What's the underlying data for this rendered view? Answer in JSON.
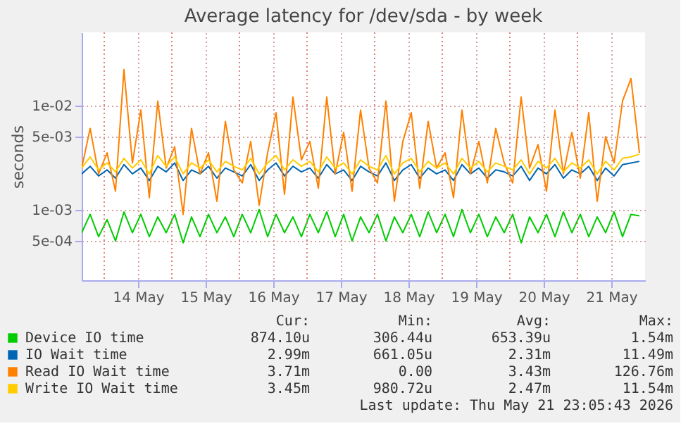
{
  "chart_data": {
    "type": "line",
    "title": "Average latency for /dev/sda - by week",
    "ylabel": "seconds",
    "x": [
      "2026-05-13T16:00",
      "2026-05-13T19:00",
      "2026-05-13T22:00",
      "2026-05-14T01:00",
      "2026-05-14T04:00",
      "2026-05-14T07:00",
      "2026-05-14T10:00",
      "2026-05-14T13:00",
      "2026-05-14T16:00",
      "2026-05-14T19:00",
      "2026-05-14T22:00",
      "2026-05-15T01:00",
      "2026-05-15T04:00",
      "2026-05-15T07:00",
      "2026-05-15T10:00",
      "2026-05-15T13:00",
      "2026-05-15T16:00",
      "2026-05-15T19:00",
      "2026-05-15T22:00",
      "2026-05-16T01:00",
      "2026-05-16T04:00",
      "2026-05-16T07:00",
      "2026-05-16T10:00",
      "2026-05-16T13:00",
      "2026-05-16T16:00",
      "2026-05-16T19:00",
      "2026-05-16T22:00",
      "2026-05-17T01:00",
      "2026-05-17T04:00",
      "2026-05-17T07:00",
      "2026-05-17T10:00",
      "2026-05-17T13:00",
      "2026-05-17T16:00",
      "2026-05-17T19:00",
      "2026-05-17T22:00",
      "2026-05-18T01:00",
      "2026-05-18T04:00",
      "2026-05-18T07:00",
      "2026-05-18T10:00",
      "2026-05-18T13:00",
      "2026-05-18T16:00",
      "2026-05-18T19:00",
      "2026-05-18T22:00",
      "2026-05-19T01:00",
      "2026-05-19T04:00",
      "2026-05-19T07:00",
      "2026-05-19T10:00",
      "2026-05-19T13:00",
      "2026-05-19T16:00",
      "2026-05-19T19:00",
      "2026-05-19T22:00",
      "2026-05-20T01:00",
      "2026-05-20T04:00",
      "2026-05-20T07:00",
      "2026-05-20T10:00",
      "2026-05-20T13:00",
      "2026-05-20T16:00",
      "2026-05-20T19:00",
      "2026-05-20T22:00",
      "2026-05-21T01:00",
      "2026-05-21T04:00",
      "2026-05-21T07:00",
      "2026-05-21T10:00",
      "2026-05-21T13:00",
      "2026-05-21T16:00",
      "2026-05-21T19:00",
      "2026-05-21T22:00"
    ],
    "series": [
      {
        "name": "Device IO time",
        "color": "#00cc00",
        "values": [
          0.0006,
          0.0009,
          0.00055,
          0.0008,
          0.0005,
          0.00095,
          0.0006,
          0.0009,
          0.00055,
          0.00085,
          0.0006,
          0.0009,
          0.00048,
          0.00085,
          0.00055,
          0.0009,
          0.0006,
          0.00085,
          0.00055,
          0.0009,
          0.0006,
          0.001,
          0.00055,
          0.0009,
          0.0006,
          0.00085,
          0.00055,
          0.0009,
          0.0006,
          0.00095,
          0.00055,
          0.0009,
          0.0005,
          0.00085,
          0.0006,
          0.0009,
          0.0005,
          0.00085,
          0.0006,
          0.0009,
          0.00055,
          0.00095,
          0.0006,
          0.0009,
          0.00055,
          0.001,
          0.0006,
          0.0009,
          0.00055,
          0.00085,
          0.0006,
          0.0009,
          0.00048,
          0.00085,
          0.0006,
          0.0009,
          0.00055,
          0.00095,
          0.0006,
          0.0009,
          0.00055,
          0.00085,
          0.0006,
          0.00095,
          0.00055,
          0.0009,
          0.00087
        ]
      },
      {
        "name": "IO Wait time",
        "color": "#0066b3",
        "values": [
          0.0022,
          0.0026,
          0.0021,
          0.0024,
          0.002,
          0.0027,
          0.0022,
          0.0025,
          0.0019,
          0.0026,
          0.0023,
          0.0028,
          0.0019,
          0.0024,
          0.0022,
          0.0026,
          0.002,
          0.0025,
          0.0023,
          0.0021,
          0.0027,
          0.0019,
          0.0024,
          0.0028,
          0.0021,
          0.0026,
          0.0023,
          0.0025,
          0.002,
          0.0027,
          0.0022,
          0.0024,
          0.0019,
          0.0026,
          0.0023,
          0.0021,
          0.0028,
          0.0019,
          0.0024,
          0.0027,
          0.002,
          0.0025,
          0.0022,
          0.0024,
          0.0019,
          0.0027,
          0.0022,
          0.0025,
          0.002,
          0.0024,
          0.0023,
          0.0021,
          0.0026,
          0.0019,
          0.0025,
          0.0022,
          0.0027,
          0.002,
          0.0024,
          0.0022,
          0.0026,
          0.0019,
          0.0025,
          0.0021,
          0.0027,
          0.0028,
          0.0029
        ]
      },
      {
        "name": "Read IO Wait time",
        "color": "#ff8000",
        "values": [
          0.0025,
          0.006,
          0.0022,
          0.0035,
          0.0015,
          0.022,
          0.0028,
          0.009,
          0.0013,
          0.011,
          0.0025,
          0.004,
          0.0009,
          0.006,
          0.0022,
          0.0035,
          0.0012,
          0.007,
          0.0024,
          0.0018,
          0.0045,
          0.0011,
          0.0035,
          0.0085,
          0.0014,
          0.012,
          0.003,
          0.0045,
          0.0016,
          0.012,
          0.0022,
          0.0055,
          0.0015,
          0.009,
          0.0025,
          0.0018,
          0.011,
          0.0012,
          0.0045,
          0.0085,
          0.0016,
          0.007,
          0.0025,
          0.0035,
          0.0013,
          0.009,
          0.0022,
          0.0045,
          0.0018,
          0.006,
          0.0028,
          0.0018,
          0.012,
          0.0025,
          0.0042,
          0.0015,
          0.009,
          0.0022,
          0.0055,
          0.002,
          0.0085,
          0.0012,
          0.005,
          0.0028,
          0.011,
          0.018,
          0.0035
        ]
      },
      {
        "name": "Write IO Wait time",
        "color": "#ffcc00",
        "values": [
          0.0025,
          0.0032,
          0.0024,
          0.0028,
          0.0023,
          0.0031,
          0.0025,
          0.003,
          0.0022,
          0.0033,
          0.0026,
          0.0032,
          0.0022,
          0.0028,
          0.0025,
          0.003,
          0.0023,
          0.0029,
          0.0026,
          0.0024,
          0.0031,
          0.0022,
          0.0028,
          0.0033,
          0.0024,
          0.003,
          0.0026,
          0.0029,
          0.0023,
          0.0032,
          0.0025,
          0.0028,
          0.0022,
          0.003,
          0.0026,
          0.0024,
          0.0033,
          0.0022,
          0.0028,
          0.0031,
          0.0023,
          0.0029,
          0.0025,
          0.0028,
          0.0022,
          0.0031,
          0.0025,
          0.0029,
          0.0023,
          0.0028,
          0.0026,
          0.0024,
          0.003,
          0.0022,
          0.0029,
          0.0025,
          0.0031,
          0.0023,
          0.0028,
          0.0025,
          0.003,
          0.0022,
          0.0029,
          0.0024,
          0.0031,
          0.0032,
          0.0034
        ]
      }
    ],
    "log": true,
    "ylim": [
      0.00021,
      0.05
    ],
    "yticks": [
      {
        "value": 0.0005,
        "label": "5e-04"
      },
      {
        "value": 0.001,
        "label": "1e-03"
      },
      {
        "value": 0.005,
        "label": "5e-03"
      },
      {
        "value": 0.01,
        "label": "1e-02"
      }
    ],
    "xlim": [
      "2026-05-13T16:00",
      "2026-05-22T00:00"
    ],
    "xticks": [
      {
        "value": "2026-05-14T00:00",
        "label": null
      },
      {
        "value": "2026-05-14T12:00",
        "label": "14 May"
      },
      {
        "value": "2026-05-15T00:00",
        "label": null
      },
      {
        "value": "2026-05-15T12:00",
        "label": "15 May"
      },
      {
        "value": "2026-05-16T00:00",
        "label": null
      },
      {
        "value": "2026-05-16T12:00",
        "label": "16 May"
      },
      {
        "value": "2026-05-17T00:00",
        "label": null
      },
      {
        "value": "2026-05-17T12:00",
        "label": "17 May"
      },
      {
        "value": "2026-05-18T00:00",
        "label": null
      },
      {
        "value": "2026-05-18T12:00",
        "label": "18 May"
      },
      {
        "value": "2026-05-19T00:00",
        "label": null
      },
      {
        "value": "2026-05-19T12:00",
        "label": "19 May"
      },
      {
        "value": "2026-05-20T00:00",
        "label": null
      },
      {
        "value": "2026-05-20T12:00",
        "label": "20 May"
      },
      {
        "value": "2026-05-21T00:00",
        "label": null
      },
      {
        "value": "2026-05-21T12:00",
        "label": "21 May"
      }
    ],
    "grid": true,
    "legend": "bottom left",
    "line_style": "solid",
    "marker": "none",
    "annotations": [
      "Cur:",
      "Min:",
      "Avg:",
      "Max:",
      "874.10u",
      "306.44u",
      "653.39u",
      "1.54m",
      "2.99m",
      "661.05u",
      "2.31m",
      "11.49m",
      "3.71m",
      "0.00",
      "3.43m",
      "126.76m",
      "3.45m",
      "980.72u",
      "2.47m",
      "11.54m",
      "Last update: Thu May 21 23:05:43 2026"
    ]
  }
}
